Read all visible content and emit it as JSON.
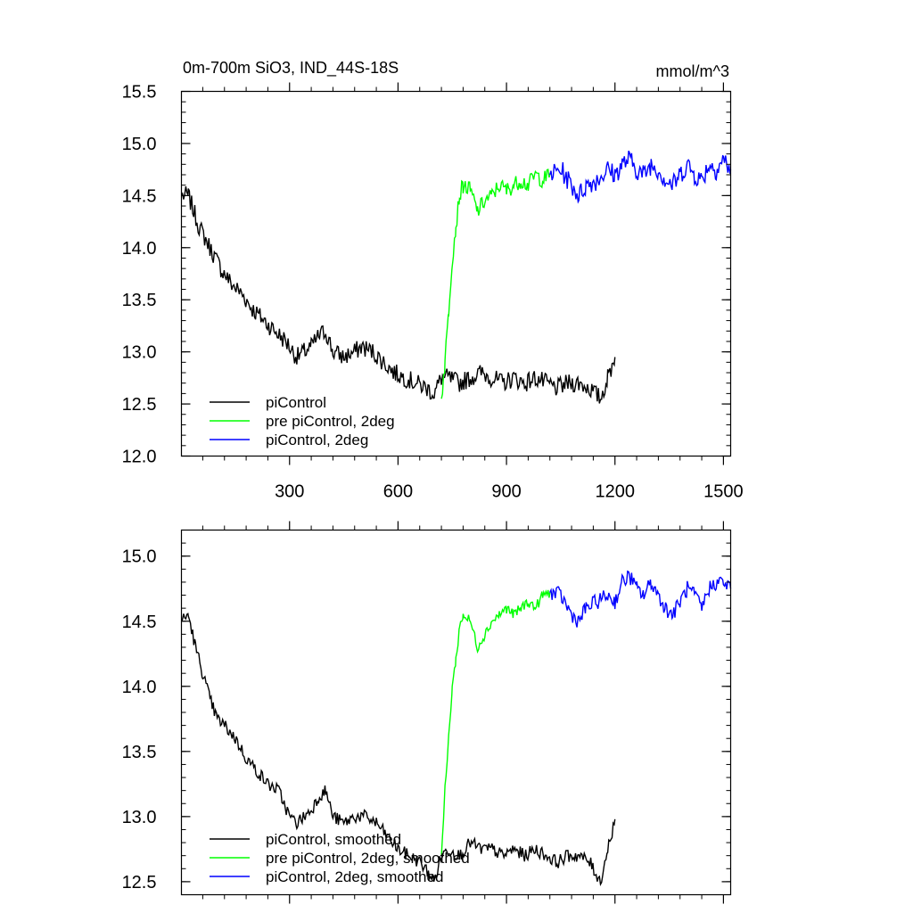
{
  "chart_data": [
    {
      "type": "line",
      "title": "0m-700m SiO3, IND_44S-18S",
      "units": "mmol/m^3",
      "xlim": [
        1,
        1520
      ],
      "ylim": [
        12.0,
        15.5
      ],
      "x_ticks": [
        300,
        600,
        900,
        1200,
        1500
      ],
      "y_ticks": [
        12.0,
        12.5,
        13.0,
        13.5,
        14.0,
        14.5,
        15.0,
        15.5
      ],
      "y_tick_labels": [
        "12.0",
        "12.5",
        "13.0",
        "13.5",
        "14.0",
        "14.5",
        "15.0",
        "15.5"
      ],
      "legend_position": "bottom-left",
      "series": [
        {
          "name": "piControl",
          "color": "#000000",
          "noise": 0.09,
          "x": [
            1,
            20,
            50,
            80,
            110,
            140,
            170,
            200,
            230,
            260,
            290,
            320,
            340,
            360,
            380,
            400,
            420,
            450,
            480,
            500,
            530,
            560,
            590,
            620,
            650,
            680,
            700,
            720,
            740,
            770,
            800,
            830,
            860,
            890,
            920,
            950,
            980,
            1010,
            1040,
            1070,
            1100,
            1130,
            1160,
            1180,
            1200
          ],
          "y": [
            14.5,
            14.5,
            14.2,
            14.0,
            13.8,
            13.65,
            13.55,
            13.4,
            13.3,
            13.2,
            13.1,
            12.95,
            13.0,
            13.05,
            13.15,
            13.2,
            13.0,
            12.95,
            13.0,
            13.05,
            13.0,
            12.9,
            12.8,
            12.75,
            12.7,
            12.65,
            12.6,
            12.75,
            12.75,
            12.7,
            12.75,
            12.8,
            12.75,
            12.7,
            12.75,
            12.7,
            12.75,
            12.7,
            12.65,
            12.7,
            12.7,
            12.65,
            12.55,
            12.75,
            12.95
          ]
        },
        {
          "name": "pre piControl, 2deg",
          "color": "#00ff00",
          "noise": 0.08,
          "x": [
            720,
            730,
            740,
            750,
            760,
            770,
            780,
            800,
            820,
            840,
            860,
            880,
            900,
            920,
            940,
            960,
            980,
            1000,
            1020
          ],
          "y": [
            12.55,
            12.9,
            13.4,
            13.9,
            14.2,
            14.5,
            14.6,
            14.55,
            14.35,
            14.45,
            14.5,
            14.6,
            14.55,
            14.6,
            14.65,
            14.6,
            14.7,
            14.65,
            14.7
          ]
        },
        {
          "name": "piControl, 2deg",
          "color": "#0000ff",
          "noise": 0.1,
          "x": [
            1020,
            1050,
            1080,
            1100,
            1120,
            1150,
            1180,
            1200,
            1220,
            1240,
            1260,
            1280,
            1300,
            1320,
            1340,
            1360,
            1380,
            1400,
            1420,
            1440,
            1460,
            1480,
            1500,
            1520
          ],
          "y": [
            14.7,
            14.75,
            14.6,
            14.5,
            14.6,
            14.65,
            14.75,
            14.7,
            14.8,
            14.85,
            14.75,
            14.7,
            14.8,
            14.75,
            14.65,
            14.6,
            14.7,
            14.8,
            14.7,
            14.65,
            14.8,
            14.75,
            14.85,
            14.75
          ]
        }
      ]
    },
    {
      "type": "line",
      "title": "",
      "xlim": [
        1,
        1520
      ],
      "ylim": [
        12.4,
        15.2
      ],
      "x_ticks": [
        300,
        600,
        900,
        1200,
        1500
      ],
      "y_ticks": [
        12.5,
        13.0,
        13.5,
        14.0,
        14.5,
        15.0
      ],
      "y_tick_labels": [
        "12.5",
        "13.0",
        "13.5",
        "14.0",
        "14.5",
        "15.0"
      ],
      "legend_position": "bottom-left",
      "series": [
        {
          "name": "piControl, smoothed",
          "color": "#000000",
          "noise": 0.05,
          "x": [
            1,
            20,
            40,
            60,
            80,
            100,
            120,
            150,
            180,
            210,
            240,
            270,
            300,
            320,
            340,
            360,
            380,
            400,
            420,
            450,
            480,
            510,
            540,
            570,
            600,
            630,
            660,
            690,
            700,
            720,
            740,
            770,
            800,
            830,
            860,
            890,
            920,
            950,
            980,
            1010,
            1040,
            1070,
            1100,
            1130,
            1160,
            1180,
            1200
          ],
          "y": [
            14.5,
            14.55,
            14.3,
            14.1,
            13.9,
            13.75,
            13.7,
            13.6,
            13.45,
            13.35,
            13.25,
            13.2,
            13.0,
            12.95,
            13.0,
            13.05,
            13.15,
            13.2,
            13.0,
            12.95,
            13.0,
            13.0,
            12.95,
            12.85,
            12.75,
            12.7,
            12.65,
            12.55,
            12.5,
            12.7,
            12.75,
            12.7,
            12.8,
            12.75,
            12.75,
            12.7,
            12.75,
            12.7,
            12.75,
            12.7,
            12.65,
            12.7,
            12.7,
            12.65,
            12.5,
            12.75,
            12.98
          ]
        },
        {
          "name": "pre piControl, 2deg, smoothed",
          "color": "#00ff00",
          "noise": 0.04,
          "x": [
            720,
            730,
            740,
            750,
            760,
            770,
            780,
            800,
            820,
            840,
            860,
            880,
            900,
            920,
            940,
            960,
            980,
            1000,
            1020
          ],
          "y": [
            12.7,
            13.2,
            13.6,
            14.0,
            14.2,
            14.45,
            14.55,
            14.5,
            14.3,
            14.4,
            14.5,
            14.55,
            14.6,
            14.55,
            14.6,
            14.65,
            14.6,
            14.7,
            14.72
          ]
        },
        {
          "name": "piControl, 2deg, smoothed",
          "color": "#0000ff",
          "noise": 0.06,
          "x": [
            1020,
            1050,
            1080,
            1100,
            1120,
            1150,
            1180,
            1200,
            1220,
            1240,
            1260,
            1280,
            1300,
            1320,
            1340,
            1360,
            1380,
            1400,
            1420,
            1440,
            1460,
            1480,
            1500,
            1520
          ],
          "y": [
            14.72,
            14.7,
            14.55,
            14.5,
            14.6,
            14.65,
            14.7,
            14.65,
            14.8,
            14.85,
            14.75,
            14.7,
            14.8,
            14.7,
            14.6,
            14.55,
            14.65,
            14.75,
            14.7,
            14.6,
            14.75,
            14.8,
            14.8,
            14.75
          ]
        }
      ]
    }
  ]
}
